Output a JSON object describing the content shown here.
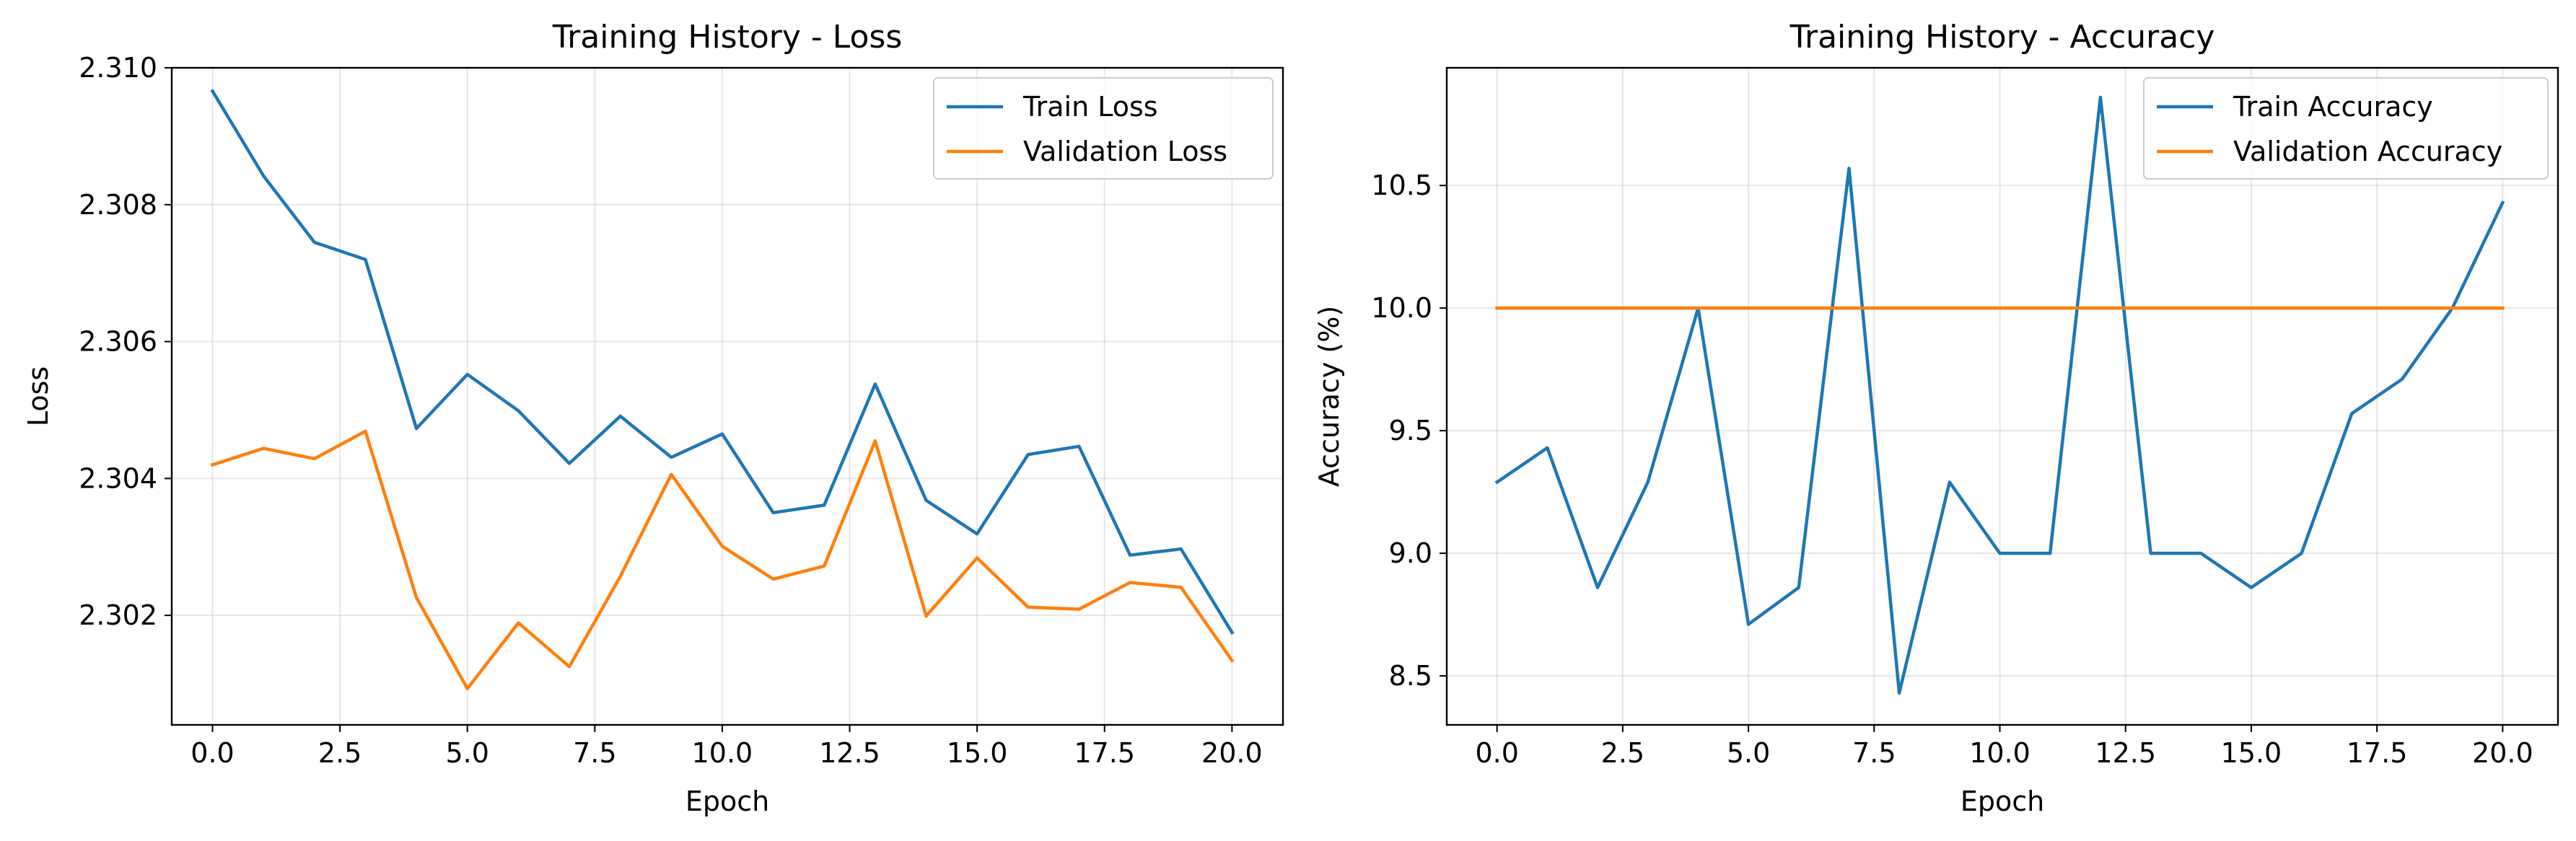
{
  "chart_data": [
    {
      "type": "line",
      "title": "Training History - Loss",
      "xlabel": "Epoch",
      "ylabel": "Loss",
      "xlim": [
        -0.8,
        21.0
      ],
      "ylim": [
        2.3004,
        2.31
      ],
      "xticks": [
        0.0,
        2.5,
        5.0,
        7.5,
        10.0,
        12.5,
        15.0,
        17.5,
        20.0
      ],
      "xtick_labels": [
        "0.0",
        "2.5",
        "5.0",
        "7.5",
        "10.0",
        "12.5",
        "15.0",
        "17.5",
        "20.0"
      ],
      "yticks": [
        2.302,
        2.304,
        2.306,
        2.308,
        2.31
      ],
      "ytick_labels": [
        "2.302",
        "2.304",
        "2.306",
        "2.308",
        "2.310"
      ],
      "grid": true,
      "legend_position": "top-right",
      "x": [
        0,
        1,
        2,
        3,
        4,
        5,
        6,
        7,
        8,
        9,
        10,
        11,
        12,
        13,
        14,
        15,
        16,
        17,
        18,
        19,
        20
      ],
      "series": [
        {
          "name": "Train Loss",
          "color": "#1f77b4",
          "values": [
            2.30966,
            2.30842,
            2.30745,
            2.3072,
            2.30473,
            2.30552,
            2.30499,
            2.30422,
            2.30491,
            2.30431,
            2.30465,
            2.3035,
            2.30361,
            2.30538,
            2.30368,
            2.30319,
            2.30435,
            2.30447,
            2.30288,
            2.30297,
            2.30175
          ]
        },
        {
          "name": "Validation Loss",
          "color": "#ff7f0e",
          "values": [
            2.3042,
            2.30444,
            2.30429,
            2.30469,
            2.30226,
            2.30093,
            2.30189,
            2.30125,
            2.30257,
            2.30406,
            2.30301,
            2.30253,
            2.30272,
            2.30455,
            2.30199,
            2.30284,
            2.30212,
            2.30209,
            2.30248,
            2.30241,
            2.30134
          ]
        }
      ]
    },
    {
      "type": "line",
      "title": "Training History - Accuracy",
      "xlabel": "Epoch",
      "ylabel": "Accuracy (%)",
      "xlim": [
        -1.0,
        21.1
      ],
      "ylim": [
        8.3,
        10.98
      ],
      "xticks": [
        0.0,
        2.5,
        5.0,
        7.5,
        10.0,
        12.5,
        15.0,
        17.5,
        20.0
      ],
      "xtick_labels": [
        "0.0",
        "2.5",
        "5.0",
        "7.5",
        "10.0",
        "12.5",
        "15.0",
        "17.5",
        "20.0"
      ],
      "yticks": [
        8.5,
        9.0,
        9.5,
        10.0,
        10.5
      ],
      "ytick_labels": [
        "8.5",
        "9.0",
        "9.5",
        "10.0",
        "10.5"
      ],
      "grid": true,
      "legend_position": "top-right",
      "x": [
        0,
        1,
        2,
        3,
        4,
        5,
        6,
        7,
        8,
        9,
        10,
        11,
        12,
        13,
        14,
        15,
        16,
        17,
        18,
        19,
        20
      ],
      "series": [
        {
          "name": "Train Accuracy",
          "color": "#1f77b4",
          "values": [
            9.29,
            9.43,
            8.86,
            9.29,
            10.0,
            8.71,
            8.86,
            10.57,
            8.43,
            9.29,
            9.0,
            9.0,
            10.86,
            9.0,
            9.0,
            8.86,
            9.0,
            9.57,
            9.71,
            10.0,
            10.43
          ]
        },
        {
          "name": "Validation Accuracy",
          "color": "#ff7f0e",
          "values": [
            10.0,
            10.0,
            10.0,
            10.0,
            10.0,
            10.0,
            10.0,
            10.0,
            10.0,
            10.0,
            10.0,
            10.0,
            10.0,
            10.0,
            10.0,
            10.0,
            10.0,
            10.0,
            10.0,
            10.0,
            10.0
          ]
        }
      ]
    }
  ]
}
